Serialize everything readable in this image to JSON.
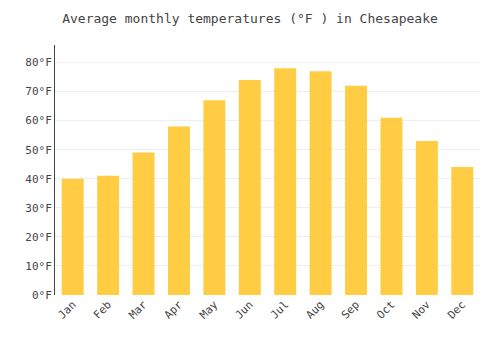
{
  "chart_data": {
    "type": "bar",
    "title": "Average monthly temperatures (°F ) in Chesapeake",
    "categories": [
      "Jan",
      "Feb",
      "Mar",
      "Apr",
      "May",
      "Jun",
      "Jul",
      "Aug",
      "Sep",
      "Oct",
      "Nov",
      "Dec"
    ],
    "values": [
      40,
      41,
      49,
      58,
      67,
      74,
      78,
      77,
      72,
      61,
      53,
      44
    ],
    "color": "#FFCC44",
    "ylim": [
      0,
      86
    ],
    "yticks": [
      {
        "value": 0,
        "label": "0°F"
      },
      {
        "value": 10,
        "label": "10°F"
      },
      {
        "value": 20,
        "label": "20°F"
      },
      {
        "value": 30,
        "label": "30°F"
      },
      {
        "value": 40,
        "label": "40°F"
      },
      {
        "value": 50,
        "label": "50°F"
      },
      {
        "value": 60,
        "label": "60°F"
      },
      {
        "value": 70,
        "label": "70°F"
      },
      {
        "value": 80,
        "label": "80°F"
      }
    ],
    "grid": true
  }
}
